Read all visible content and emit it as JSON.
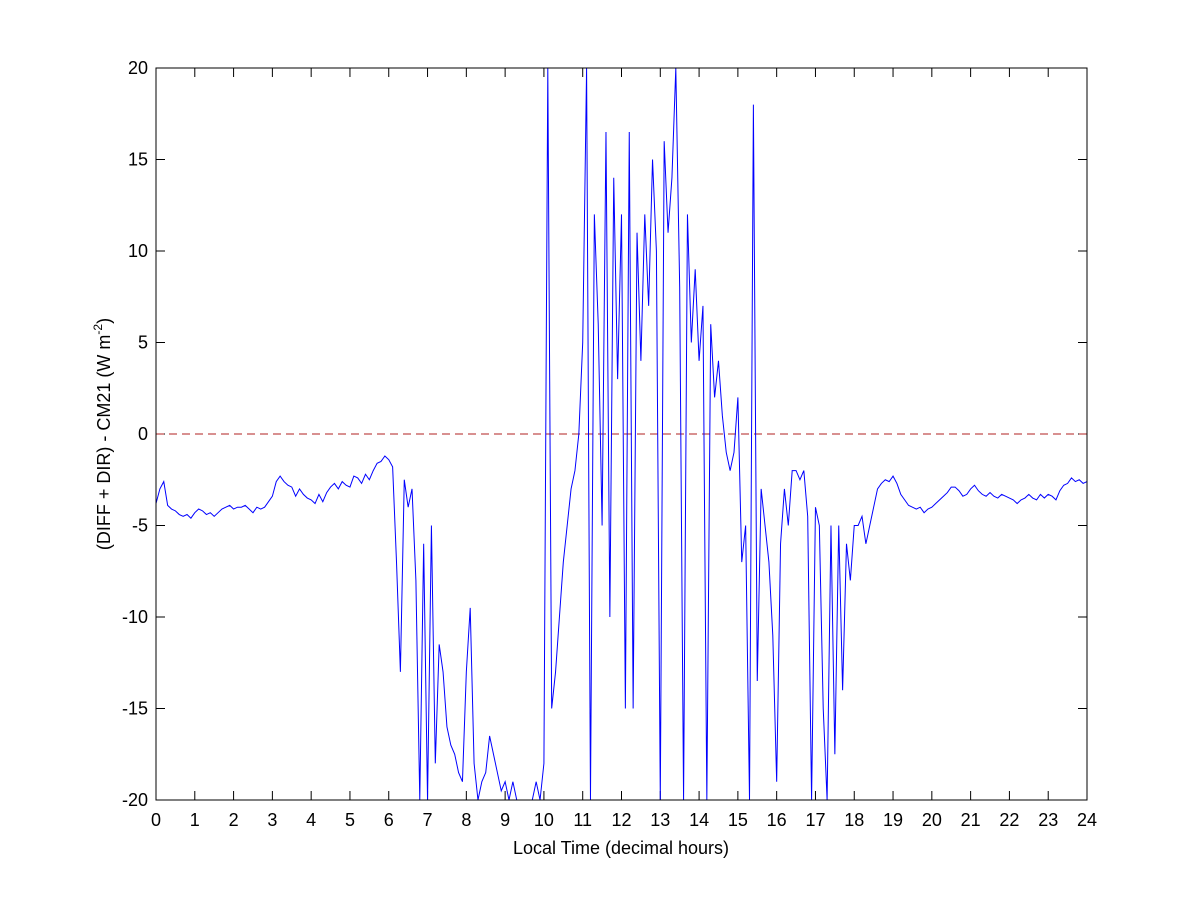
{
  "chart_data": {
    "type": "line",
    "xlabel": "Local Time (decimal hours)",
    "ylabel": {
      "text": "(DIFF + DIR) - CM21 (W m",
      "sup": "-2",
      "end": ")"
    },
    "color": "#0000ff",
    "reference_line": {
      "value": 0,
      "color": "#b22222",
      "style": "dashed"
    },
    "xlim": [
      0,
      24
    ],
    "ylim": [
      -20,
      20
    ],
    "xticks": [
      0,
      1,
      2,
      3,
      4,
      5,
      6,
      7,
      8,
      9,
      10,
      11,
      12,
      13,
      14,
      15,
      16,
      17,
      18,
      19,
      20,
      21,
      22,
      23,
      24
    ],
    "yticks": [
      -20,
      -15,
      -10,
      -5,
      0,
      5,
      10,
      15,
      20
    ],
    "grid": false,
    "x": [
      0,
      0.1,
      0.2,
      0.3,
      0.4,
      0.5,
      0.6,
      0.7,
      0.8,
      0.9,
      1,
      1.1,
      1.2,
      1.3,
      1.4,
      1.5,
      1.6,
      1.7,
      1.8,
      1.9,
      2,
      2.1,
      2.2,
      2.3,
      2.4,
      2.5,
      2.6,
      2.7,
      2.8,
      2.9,
      3,
      3.1,
      3.2,
      3.3,
      3.4,
      3.5,
      3.6,
      3.7,
      3.8,
      3.9,
      4,
      4.1,
      4.2,
      4.3,
      4.4,
      4.5,
      4.6,
      4.7,
      4.8,
      4.9,
      5,
      5.1,
      5.2,
      5.3,
      5.4,
      5.5,
      5.6,
      5.7,
      5.8,
      5.9,
      6,
      6.1,
      6.2,
      6.3,
      6.4,
      6.5,
      6.6,
      6.7,
      6.8,
      6.9,
      7,
      7.1,
      7.2,
      7.3,
      7.4,
      7.5,
      7.6,
      7.7,
      7.8,
      7.9,
      8,
      8.1,
      8.2,
      8.3,
      8.4,
      8.5,
      8.6,
      8.7,
      8.8,
      8.9,
      9,
      9.1,
      9.2,
      9.3,
      9.4,
      9.5,
      9.6,
      9.7,
      9.8,
      9.9,
      10,
      10.1,
      10.2,
      10.3,
      10.4,
      10.5,
      10.6,
      10.7,
      10.8,
      10.9,
      11,
      11.1,
      11.2,
      11.3,
      11.4,
      11.5,
      11.6,
      11.7,
      11.8,
      11.9,
      12,
      12.1,
      12.2,
      12.3,
      12.4,
      12.5,
      12.6,
      12.7,
      12.8,
      12.9,
      13,
      13.1,
      13.2,
      13.3,
      13.4,
      13.5,
      13.6,
      13.7,
      13.8,
      13.9,
      14,
      14.1,
      14.2,
      14.3,
      14.4,
      14.5,
      14.6,
      14.7,
      14.8,
      14.9,
      15,
      15.1,
      15.2,
      15.3,
      15.4,
      15.5,
      15.6,
      15.7,
      15.8,
      15.9,
      16,
      16.1,
      16.2,
      16.3,
      16.4,
      16.5,
      16.6,
      16.7,
      16.8,
      16.9,
      17,
      17.1,
      17.2,
      17.3,
      17.4,
      17.5,
      17.6,
      17.7,
      17.8,
      17.9,
      18,
      18.1,
      18.2,
      18.3,
      18.4,
      18.5,
      18.6,
      18.7,
      18.8,
      18.9,
      19,
      19.1,
      19.2,
      19.3,
      19.4,
      19.5,
      19.6,
      19.7,
      19.8,
      19.9,
      20,
      20.1,
      20.2,
      20.3,
      20.4,
      20.5,
      20.6,
      20.7,
      20.8,
      20.9,
      21,
      21.1,
      21.2,
      21.3,
      21.4,
      21.5,
      21.6,
      21.7,
      21.8,
      21.9,
      22,
      22.1,
      22.2,
      22.3,
      22.4,
      22.5,
      22.6,
      22.7,
      22.8,
      22.9,
      23,
      23.1,
      23.2,
      23.3,
      23.4,
      23.5,
      23.6,
      23.7,
      23.8,
      23.9,
      24
    ],
    "values": [
      -3.8,
      -3,
      -2.6,
      -3.9,
      -4.1,
      -4.2,
      -4.4,
      -4.5,
      -4.4,
      -4.6,
      -4.3,
      -4.1,
      -4.2,
      -4.4,
      -4.3,
      -4.5,
      -4.3,
      -4.1,
      -4,
      -3.9,
      -4.1,
      -4,
      -4,
      -3.9,
      -4.1,
      -4.3,
      -4,
      -4.1,
      -4,
      -3.7,
      -3.4,
      -2.6,
      -2.3,
      -2.6,
      -2.8,
      -2.9,
      -3.4,
      -3,
      -3.3,
      -3.5,
      -3.6,
      -3.8,
      -3.3,
      -3.7,
      -3.2,
      -2.9,
      -2.7,
      -3,
      -2.6,
      -2.8,
      -2.9,
      -2.3,
      -2.4,
      -2.7,
      -2.2,
      -2.5,
      -2,
      -1.6,
      -1.5,
      -1.2,
      -1.4,
      -1.8,
      -7,
      -13,
      -2.5,
      -4,
      -3,
      -8,
      -20,
      -6,
      -20,
      -5,
      -18,
      -11.5,
      -13,
      -16,
      -17,
      -17.5,
      -18.5,
      -19,
      -13,
      -9.5,
      -18,
      -20,
      -19,
      -18.5,
      -16.5,
      -17.5,
      -18.5,
      -19.5,
      -19,
      -20,
      -19,
      -20,
      -20,
      -20,
      -20,
      -20,
      -19,
      -20,
      -18,
      20,
      -15,
      -13,
      -10,
      -7,
      -5,
      -3,
      -2,
      0,
      5,
      20,
      -20,
      12,
      6,
      -5,
      16.5,
      -10,
      14,
      3,
      12,
      -15,
      16.5,
      -15,
      11,
      4,
      12,
      7,
      15,
      10,
      -20,
      16,
      11,
      14,
      20,
      8,
      -20,
      12,
      5,
      9,
      4,
      7,
      -20,
      6,
      2,
      4,
      1,
      -1,
      -2,
      -1,
      2,
      -7,
      -5,
      -20,
      18,
      -13.5,
      -3,
      -5,
      -7,
      -11,
      -19,
      -6,
      -3,
      -5,
      -2,
      -2,
      -2.5,
      -2,
      -4.5,
      -20,
      -4,
      -5,
      -15,
      -20,
      -5,
      -17.5,
      -5,
      -14,
      -6,
      -8,
      -5,
      -5,
      -4.5,
      -6,
      -5,
      -4,
      -3,
      -2.7,
      -2.5,
      -2.6,
      -2.3,
      -2.7,
      -3.3,
      -3.6,
      -3.9,
      -4,
      -4.1,
      -4,
      -4.3,
      -4.1,
      -4,
      -3.8,
      -3.6,
      -3.4,
      -3.2,
      -2.9,
      -2.9,
      -3.1,
      -3.4,
      -3.3,
      -3,
      -2.8,
      -3.1,
      -3.3,
      -3.4,
      -3.2,
      -3.4,
      -3.5,
      -3.3,
      -3.4,
      -3.5,
      -3.6,
      -3.8,
      -3.6,
      -3.5,
      -3.3,
      -3.5,
      -3.6,
      -3.3,
      -3.5,
      -3.3,
      -3.4,
      -3.6,
      -3.1,
      -2.8,
      -2.7,
      -2.4,
      -2.6,
      -2.5,
      -2.7,
      -2.6
    ]
  }
}
